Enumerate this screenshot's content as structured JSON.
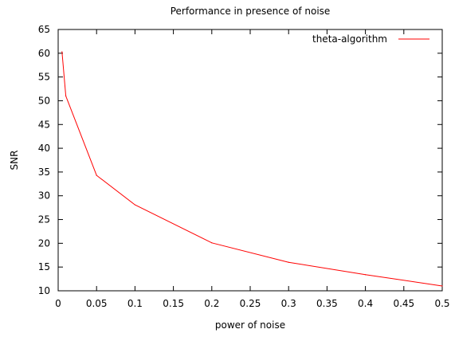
{
  "chart_data": {
    "type": "line",
    "title": "Performance in presence of noise",
    "xlabel": "power of noise",
    "ylabel": "SNR",
    "xlim": [
      0,
      0.5
    ],
    "ylim": [
      10,
      65
    ],
    "xticks": [
      0,
      0.05,
      0.1,
      0.15,
      0.2,
      0.25,
      0.3,
      0.35,
      0.4,
      0.45,
      0.5
    ],
    "xtick_labels": [
      "0",
      "0.05",
      "0.1",
      "0.15",
      "0.2",
      "0.25",
      "0.3",
      "0.35",
      "0.4",
      "0.45",
      "0.5"
    ],
    "yticks": [
      10,
      15,
      20,
      25,
      30,
      35,
      40,
      45,
      50,
      55,
      60,
      65
    ],
    "ytick_labels": [
      "10",
      "15",
      "20",
      "25",
      "30",
      "35",
      "40",
      "45",
      "50",
      "55",
      "60",
      "65"
    ],
    "grid": false,
    "legend_position": "top-right",
    "series": [
      {
        "name": "theta-algorithm",
        "color": "#ff0000",
        "x": [
          0.005,
          0.01,
          0.05,
          0.1,
          0.2,
          0.3,
          0.4,
          0.5
        ],
        "y": [
          60.3,
          51.0,
          34.3,
          28.1,
          20.1,
          16.0,
          13.4,
          11.0
        ]
      }
    ]
  }
}
